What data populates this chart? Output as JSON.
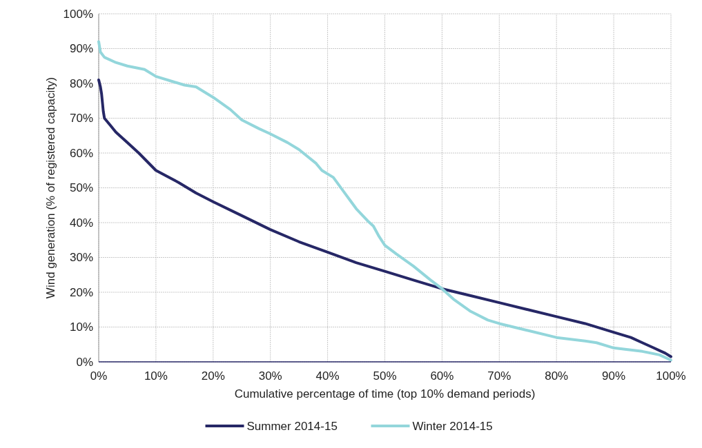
{
  "chart_data": {
    "type": "line",
    "xlabel": "Cumulative percentage of time (top 10% demand periods)",
    "ylabel": "Wind generation (% of registered capacity)",
    "xlim": [
      0,
      100
    ],
    "ylim": [
      0,
      100
    ],
    "xticks": [
      {
        "value": 0,
        "label": "0%"
      },
      {
        "value": 10,
        "label": "10%"
      },
      {
        "value": 20,
        "label": "20%"
      },
      {
        "value": 30,
        "label": "30%"
      },
      {
        "value": 40,
        "label": "40%"
      },
      {
        "value": 50,
        "label": "50%"
      },
      {
        "value": 60,
        "label": "60%"
      },
      {
        "value": 70,
        "label": "70%"
      },
      {
        "value": 80,
        "label": "80%"
      },
      {
        "value": 90,
        "label": "90%"
      },
      {
        "value": 100,
        "label": "100%"
      }
    ],
    "yticks": [
      {
        "value": 0,
        "label": "0%"
      },
      {
        "value": 10,
        "label": "10%"
      },
      {
        "value": 20,
        "label": "20%"
      },
      {
        "value": 30,
        "label": "30%"
      },
      {
        "value": 40,
        "label": "40%"
      },
      {
        "value": 50,
        "label": "50%"
      },
      {
        "value": 60,
        "label": "60%"
      },
      {
        "value": 70,
        "label": "70%"
      },
      {
        "value": 80,
        "label": "80%"
      },
      {
        "value": 90,
        "label": "90%"
      },
      {
        "value": 100,
        "label": "100%"
      }
    ],
    "grid": true,
    "legend": "bottom",
    "line_style": "solid",
    "series": [
      {
        "name": "Summer 2014-15",
        "color": "#262766",
        "x": [
          0,
          0.3,
          0.5,
          0.8,
          1,
          2,
          3,
          5,
          7,
          10,
          14,
          17,
          20,
          25,
          30,
          35,
          40,
          45,
          50,
          55,
          60,
          65,
          70,
          75,
          80,
          85,
          90,
          93,
          95,
          97,
          99,
          100
        ],
        "values": [
          81,
          79,
          77,
          72,
          70,
          68,
          66,
          63,
          60,
          55,
          51.5,
          48.5,
          46,
          42,
          38,
          34.5,
          31.5,
          28.5,
          26,
          23.5,
          21,
          19,
          17,
          15,
          13,
          11,
          8.5,
          7,
          5.5,
          4,
          2.5,
          1.5
        ]
      },
      {
        "name": "Winter 2014-15",
        "color": "#93d6db",
        "x": [
          0,
          0.3,
          1,
          3,
          5,
          8,
          10,
          13,
          15,
          17,
          20,
          23,
          25,
          28,
          30,
          33,
          35,
          38,
          39,
          41,
          43,
          45,
          47,
          48,
          49,
          50,
          52,
          55,
          58,
          60,
          62,
          65,
          68,
          70,
          75,
          80,
          85,
          87,
          90,
          95,
          98,
          100
        ],
        "values": [
          92,
          89,
          87.5,
          86,
          85,
          84,
          82,
          80.5,
          79.5,
          79,
          76,
          72.5,
          69.5,
          67,
          65.5,
          63,
          61,
          57,
          55,
          53,
          48.5,
          44,
          40.5,
          39,
          36,
          33.5,
          31,
          27.5,
          23.5,
          21,
          18,
          14.5,
          12,
          11,
          9,
          7,
          6,
          5.5,
          4,
          3,
          2,
          0.5
        ]
      }
    ]
  }
}
